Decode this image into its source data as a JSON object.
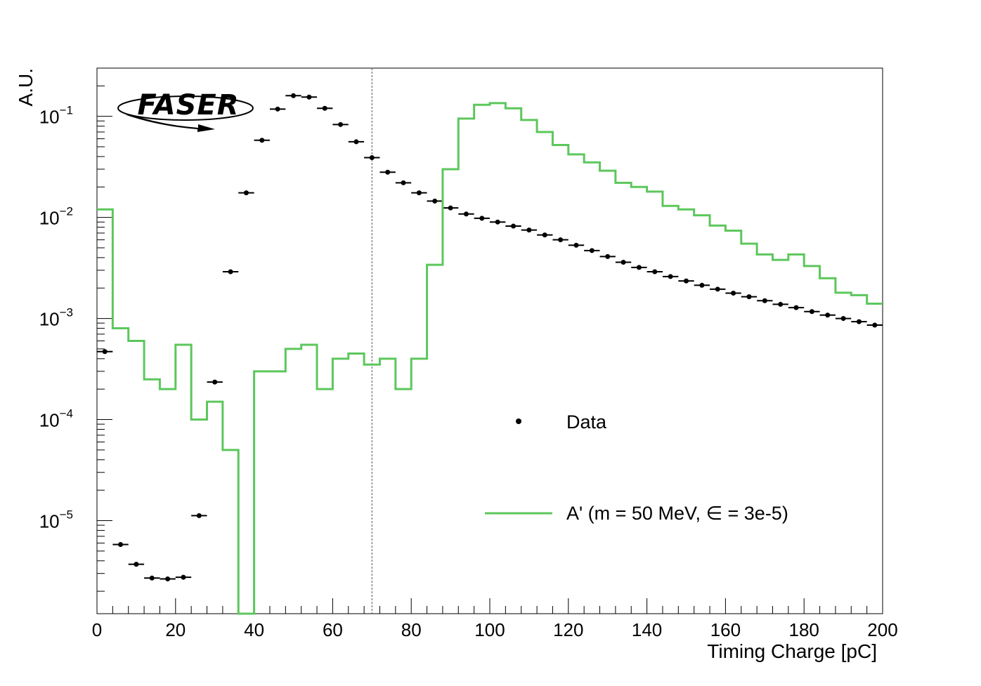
{
  "chart_data": {
    "type": "line",
    "title": "",
    "xlabel": "Timing Charge [pC]",
    "ylabel": "A.U.",
    "xlim": [
      0,
      200
    ],
    "ylim": [
      1.2e-06,
      0.3
    ],
    "yscale": "log",
    "grid": false,
    "legend_position": "center-right",
    "logo_text": "FASER",
    "cut_line_x": 70,
    "x_ticks": [
      "0",
      "20",
      "40",
      "60",
      "80",
      "100",
      "120",
      "140",
      "160",
      "180",
      "200"
    ],
    "y_ticks": [
      {
        "base": "10",
        "exp": "−5",
        "value": 1e-05
      },
      {
        "base": "10",
        "exp": "−4",
        "value": 0.0001
      },
      {
        "base": "10",
        "exp": "−3",
        "value": 0.001
      },
      {
        "base": "10",
        "exp": "−2",
        "value": 0.01
      },
      {
        "base": "10",
        "exp": "−1",
        "value": 0.1
      }
    ],
    "series": [
      {
        "name": "Data",
        "style": "points",
        "color": "#000000",
        "bin_width": 4,
        "x": [
          2,
          6,
          10,
          14,
          18,
          22,
          26,
          30,
          34,
          38,
          42,
          46,
          50,
          54,
          58,
          62,
          66,
          70,
          74,
          78,
          82,
          86,
          90,
          94,
          98,
          102,
          106,
          110,
          114,
          118,
          122,
          126,
          130,
          134,
          138,
          142,
          146,
          150,
          154,
          158,
          162,
          166,
          170,
          174,
          178,
          182,
          186,
          190,
          194,
          198
        ],
        "y": [
          0.00047,
          5.8e-06,
          3.7e-06,
          2.7e-06,
          2.65e-06,
          2.75e-06,
          1.12e-05,
          0.000235,
          0.0029,
          0.0175,
          0.058,
          0.118,
          0.16,
          0.155,
          0.12,
          0.083,
          0.056,
          0.039,
          0.028,
          0.022,
          0.0175,
          0.0145,
          0.0124,
          0.0108,
          0.0098,
          0.009,
          0.0082,
          0.0075,
          0.0067,
          0.006,
          0.0053,
          0.0047,
          0.0041,
          0.0036,
          0.0032,
          0.0029,
          0.0026,
          0.00235,
          0.00213,
          0.00195,
          0.00178,
          0.00164,
          0.0015,
          0.00138,
          0.00128,
          0.00117,
          0.00108,
          0.001,
          0.00093,
          0.00086
        ]
      },
      {
        "name": "A' (m = 50 MeV, ∈ = 3e-5)",
        "style": "step",
        "color": "#5cc75c",
        "bin_width": 4,
        "x": [
          0,
          4,
          8,
          12,
          16,
          20,
          24,
          28,
          32,
          36,
          40,
          44,
          48,
          52,
          56,
          60,
          64,
          68,
          72,
          76,
          80,
          84,
          88,
          92,
          96,
          100,
          104,
          108,
          112,
          116,
          120,
          124,
          128,
          132,
          136,
          140,
          144,
          148,
          152,
          156,
          160,
          164,
          168,
          172,
          176,
          180,
          184,
          188,
          192,
          196
        ],
        "y": [
          0.012,
          0.0008,
          0.0006,
          0.00025,
          0.0002,
          0.00055,
          0.0001,
          0.00015,
          5e-05,
          1e-09,
          0.0003,
          0.0003,
          0.0005,
          0.00055,
          0.0002,
          0.0004,
          0.00045,
          0.00035,
          0.0004,
          0.0002,
          0.0004,
          0.0034,
          0.03,
          0.095,
          0.13,
          0.135,
          0.12,
          0.092,
          0.07,
          0.052,
          0.042,
          0.035,
          0.029,
          0.022,
          0.02,
          0.018,
          0.013,
          0.012,
          0.0105,
          0.0083,
          0.0074,
          0.0055,
          0.0043,
          0.0038,
          0.0043,
          0.0033,
          0.0025,
          0.0018,
          0.0017,
          0.0014
        ]
      }
    ]
  }
}
